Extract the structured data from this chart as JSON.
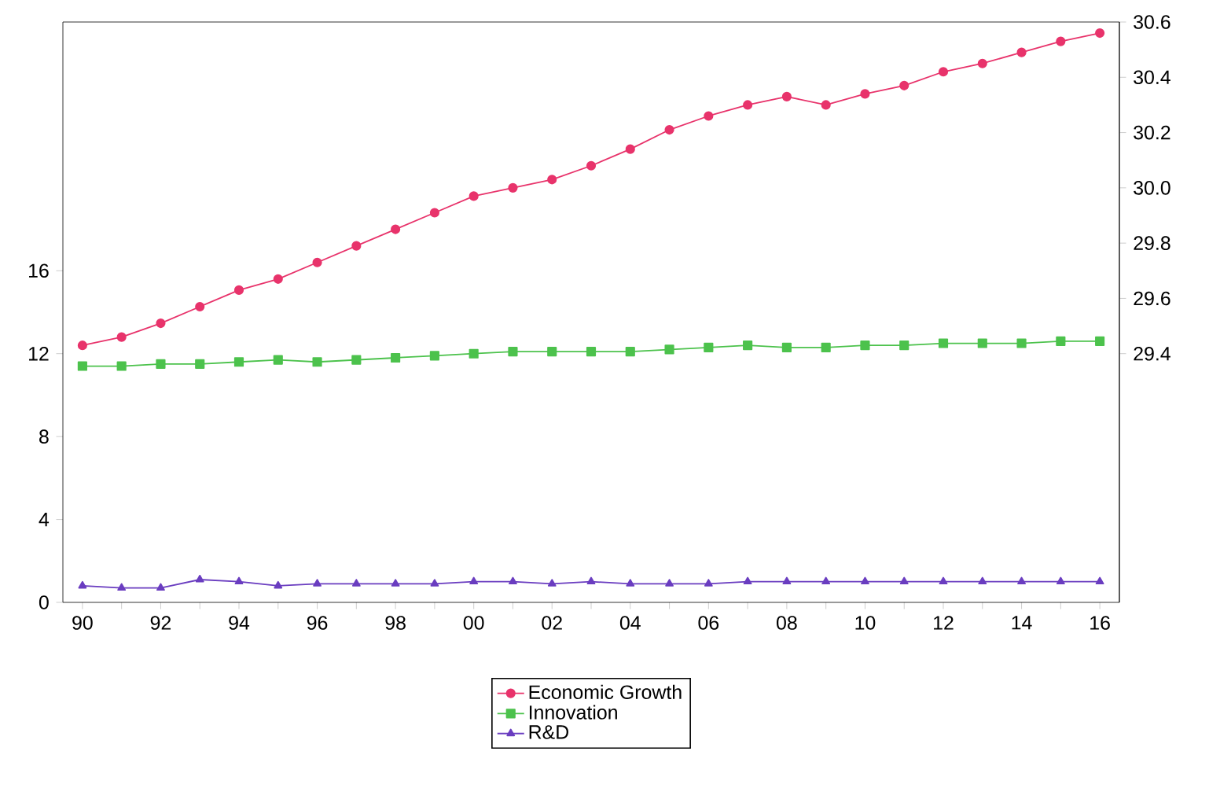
{
  "chart_data": {
    "type": "line",
    "x": [
      1990,
      1991,
      1992,
      1993,
      1994,
      1995,
      1996,
      1997,
      1998,
      1999,
      2000,
      2001,
      2002,
      2003,
      2004,
      2005,
      2006,
      2007,
      2008,
      2009,
      2010,
      2011,
      2012,
      2013,
      2014,
      2015,
      2016
    ],
    "series": [
      {
        "name": "Economic Growth",
        "color": "#e8336b",
        "marker": "circle",
        "axis": "y2",
        "values": [
          29.43,
          29.46,
          29.51,
          29.57,
          29.63,
          29.67,
          29.73,
          29.79,
          29.85,
          29.91,
          29.97,
          30.0,
          30.03,
          30.08,
          30.14,
          30.21,
          30.26,
          30.3,
          30.33,
          30.3,
          30.34,
          30.37,
          30.42,
          30.45,
          30.49,
          30.53,
          30.56
        ]
      },
      {
        "name": "Innovation",
        "color": "#4cc24c",
        "marker": "square",
        "values": [
          11.4,
          11.4,
          11.5,
          11.5,
          11.6,
          11.7,
          11.6,
          11.7,
          11.8,
          11.9,
          12.0,
          12.1,
          12.1,
          12.1,
          12.1,
          12.2,
          12.3,
          12.4,
          12.3,
          12.3,
          12.4,
          12.4,
          12.5,
          12.5,
          12.5,
          12.6,
          12.6
        ]
      },
      {
        "name": "R&D",
        "color": "#6a3dc0",
        "marker": "triangle",
        "values": [
          0.8,
          0.7,
          0.7,
          1.1,
          1.0,
          0.8,
          0.9,
          0.9,
          0.9,
          0.9,
          1.0,
          1.0,
          0.9,
          1.0,
          0.9,
          0.9,
          0.9,
          1.0,
          1.0,
          1.0,
          1.0,
          1.0,
          1.0,
          1.0,
          1.0,
          1.0,
          1.0
        ]
      }
    ],
    "xlim": [
      1989.5,
      2016.5
    ],
    "xticks": [
      {
        "value": 1990,
        "label": "90"
      },
      {
        "value": 1991,
        "label": null
      },
      {
        "value": 1992,
        "label": "92"
      },
      {
        "value": 1993,
        "label": null
      },
      {
        "value": 1994,
        "label": "94"
      },
      {
        "value": 1995,
        "label": null
      },
      {
        "value": 1996,
        "label": "96"
      },
      {
        "value": 1997,
        "label": null
      },
      {
        "value": 1998,
        "label": "98"
      },
      {
        "value": 1999,
        "label": null
      },
      {
        "value": 2000,
        "label": "00"
      },
      {
        "value": 2001,
        "label": null
      },
      {
        "value": 2002,
        "label": "02"
      },
      {
        "value": 2003,
        "label": null
      },
      {
        "value": 2004,
        "label": "04"
      },
      {
        "value": 2005,
        "label": null
      },
      {
        "value": 2006,
        "label": "06"
      },
      {
        "value": 2007,
        "label": null
      },
      {
        "value": 2008,
        "label": "08"
      },
      {
        "value": 2009,
        "label": null
      },
      {
        "value": 2010,
        "label": "10"
      },
      {
        "value": 2011,
        "label": null
      },
      {
        "value": 2012,
        "label": "12"
      },
      {
        "value": 2013,
        "label": null
      },
      {
        "value": 2014,
        "label": "14"
      },
      {
        "value": 2015,
        "label": null
      },
      {
        "value": 2016,
        "label": "16"
      }
    ],
    "ylim": [
      0,
      28
    ],
    "yticks": [
      0,
      4,
      8,
      12,
      16
    ],
    "y2lim": [
      28.5,
      30.6
    ],
    "y2ticks": [
      29.4,
      29.6,
      29.8,
      {
        "value": 30.0,
        "label": "30.0"
      },
      30.2,
      30.4,
      30.6
    ],
    "legend": "bottom",
    "grid": false,
    "line_style": "solid"
  }
}
